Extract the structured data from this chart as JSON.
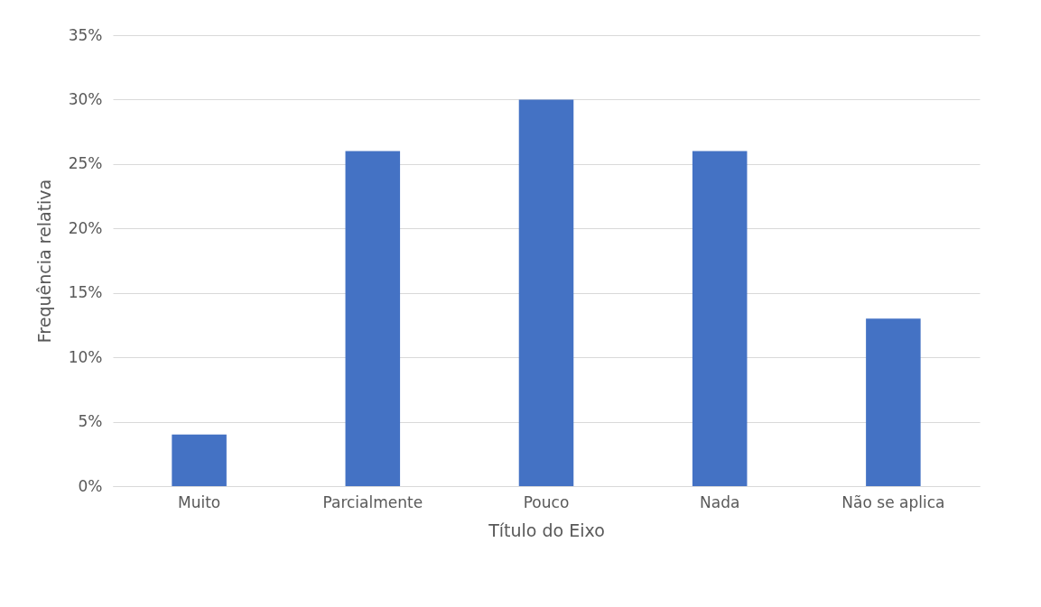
{
  "chart_data": {
    "type": "bar",
    "xlabel": "Título do Eixo",
    "ylabel": "Frequência relativa",
    "categories": [
      "Muito",
      "Parcialmente",
      "Pouco",
      "Nada",
      "Não se aplica"
    ],
    "values": [
      4,
      26,
      30,
      26,
      13
    ],
    "color": "#4472c4",
    "ylim": [
      0,
      35
    ],
    "yticks": [
      {
        "value": 0,
        "label": "0%"
      },
      {
        "value": 5,
        "label": "5%"
      },
      {
        "value": 10,
        "label": "10%"
      },
      {
        "value": 15,
        "label": "15%"
      },
      {
        "value": 20,
        "label": "20%"
      },
      {
        "value": 25,
        "label": "25%"
      },
      {
        "value": 30,
        "label": "30%"
      },
      {
        "value": 35,
        "label": "35%"
      }
    ],
    "grid": "y"
  }
}
